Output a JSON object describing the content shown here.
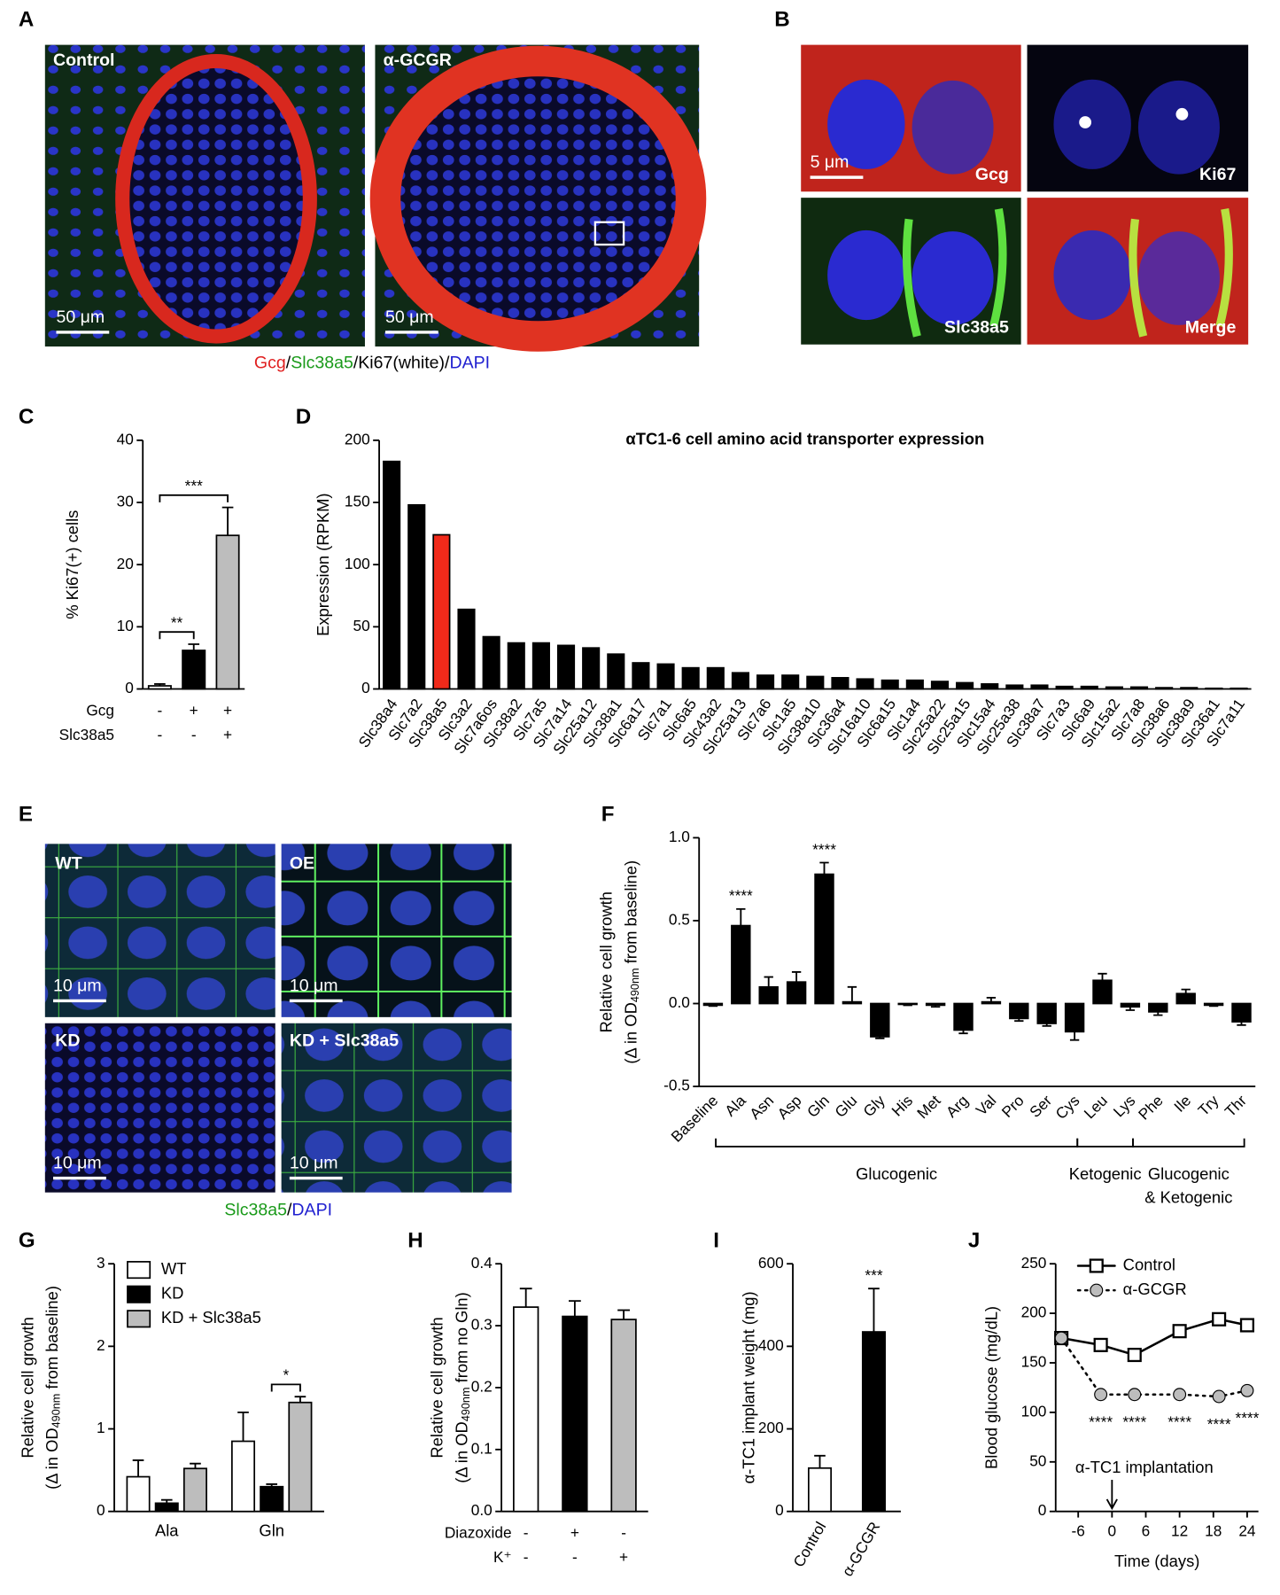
{
  "panel_letters": [
    "A",
    "B",
    "C",
    "D",
    "E",
    "F",
    "G",
    "H",
    "I",
    "J"
  ],
  "images": {
    "A": {
      "labels": [
        "Control",
        "α-GCGR"
      ],
      "scale_bar": "50 μm",
      "caption": [
        {
          "text": "Gcg",
          "color": "#e02020"
        },
        {
          "text": "/",
          "color": "#000000"
        },
        {
          "text": "Slc38a5",
          "color": "#1a9a1a"
        },
        {
          "text": "/Ki67(white)/",
          "color": "#000000"
        },
        {
          "text": "DAPI",
          "color": "#2020d0"
        }
      ]
    },
    "B": {
      "labels": [
        "Gcg",
        "Ki67",
        "Slc38a5",
        "Merge"
      ],
      "scale_bar": "5 μm"
    },
    "E": {
      "labels": [
        "WT",
        "OE",
        "KD",
        "KD + Slc38a5"
      ],
      "scale_bar": "10 μm",
      "caption": [
        {
          "text": "Slc38a5",
          "color": "#1a9a1a"
        },
        {
          "text": "/",
          "color": "#000000"
        },
        {
          "text": "DAPI",
          "color": "#2020d0"
        }
      ]
    }
  },
  "chart_data": [
    {
      "type": "bar",
      "ylabel": "% Ki67(+) cells",
      "values": [
        0.5,
        6.2,
        24.7
      ],
      "errors": [
        0.3,
        1.0,
        4.5
      ],
      "colors": [
        "#ffffff",
        "#000000",
        "#bdbdbd"
      ],
      "ylim": [
        0,
        40
      ],
      "yticks": [
        0,
        10,
        20,
        30,
        40
      ],
      "rows": [
        {
          "label": "Gcg",
          "signs": [
            "-",
            "+",
            "+"
          ]
        },
        {
          "label": "Slc38a5",
          "signs": [
            "-",
            "-",
            "+"
          ]
        }
      ],
      "brackets": [
        {
          "from": 0,
          "to": 1,
          "label": "**"
        },
        {
          "from": 0,
          "to": 2,
          "label": "***"
        }
      ]
    },
    {
      "type": "bar",
      "title": "αTC1-6 cell amino acid transporter expression",
      "ylabel": "Expression (RPKM)",
      "categories": [
        "Slc38a4",
        "Slc7a2",
        "Slc38a5",
        "Slc3a2",
        "Slc7a6os",
        "Slc38a2",
        "Slc7a5",
        "Slc7a14",
        "Slc25a12",
        "Slc38a1",
        "Slc6a17",
        "Slc7a1",
        "Slc6a5",
        "Slc43a2",
        "Slc25a13",
        "Slc7a6",
        "Slc1a5",
        "Slc38a10",
        "Slc36a4",
        "Slc16a10",
        "Slc6a15",
        "Slc1a4",
        "Slc25a22",
        "Slc25a15",
        "Slc15a4",
        "Slc25a38",
        "Slc38a7",
        "Slc7a3",
        "Slc6a9",
        "Slc15a2",
        "Slc7a8",
        "Slc38a6",
        "Slc38a9",
        "Slc36a1",
        "Slc7a11"
      ],
      "values": [
        183,
        148,
        124,
        64,
        42,
        37,
        37,
        35,
        33,
        28,
        21,
        20,
        17,
        17,
        13,
        11,
        11,
        10,
        9,
        8,
        7,
        7,
        6,
        5,
        4,
        3,
        3,
        2,
        2,
        1.5,
        1.5,
        1,
        1,
        0.5,
        0.5
      ],
      "colors": [
        "#000000",
        "#000000",
        "#f02a1a",
        "#000000",
        "#000000",
        "#000000",
        "#000000",
        "#000000",
        "#000000",
        "#000000",
        "#000000",
        "#000000",
        "#000000",
        "#000000",
        "#000000",
        "#000000",
        "#000000",
        "#000000",
        "#000000",
        "#000000",
        "#000000",
        "#000000",
        "#000000",
        "#000000",
        "#000000",
        "#000000",
        "#000000",
        "#000000",
        "#000000",
        "#000000",
        "#000000",
        "#000000",
        "#000000",
        "#000000",
        "#000000"
      ],
      "ylim": [
        0,
        200
      ],
      "yticks": [
        0,
        50,
        100,
        150,
        200
      ]
    },
    {
      "type": "bar",
      "ylabel": "Relative cell growth",
      "ylabel_sub": {
        "pre": "(Δ in OD",
        "sub": "490nm",
        "post": " from baseline)"
      },
      "categories": [
        "Baseline",
        "Ala",
        "Asn",
        "Asp",
        "Gln",
        "Glu",
        "Gly",
        "His",
        "Met",
        "Arg",
        "Val",
        "Pro",
        "Ser",
        "Cys",
        "Leu",
        "Lys",
        "Phe",
        "Ile",
        "Try",
        "Thr"
      ],
      "values": [
        -0.01,
        0.47,
        0.1,
        0.13,
        0.78,
        0.01,
        -0.2,
        -0.005,
        -0.01,
        -0.16,
        0.01,
        -0.09,
        -0.12,
        -0.17,
        0.14,
        -0.02,
        -0.05,
        0.06,
        -0.01,
        -0.11
      ],
      "errors": [
        0.005,
        0.1,
        0.06,
        0.06,
        0.07,
        0.09,
        0.01,
        0.005,
        0.01,
        0.02,
        0.025,
        0.015,
        0.015,
        0.05,
        0.04,
        0.02,
        0.02,
        0.025,
        0.005,
        0.02
      ],
      "colors": [
        "#000000",
        "#000000",
        "#000000",
        "#000000",
        "#000000",
        "#000000",
        "#000000",
        "#000000",
        "#000000",
        "#000000",
        "#000000",
        "#000000",
        "#000000",
        "#000000",
        "#000000",
        "#000000",
        "#000000",
        "#000000",
        "#000000",
        "#000000"
      ],
      "ylim": [
        -0.5,
        1.0
      ],
      "yticks": [
        -0.5,
        {
          "value": 0,
          "label": "0.0"
        },
        0.5,
        {
          "value": 1,
          "label": "1.0"
        }
      ],
      "annotations": [
        {
          "index": 1,
          "label": "****"
        },
        {
          "index": 4,
          "label": "****"
        }
      ],
      "groups": [
        {
          "from": 1,
          "to": 13,
          "label": [
            "Glucogenic"
          ]
        },
        {
          "from": 14,
          "to": 15,
          "label": [
            "Ketogenic"
          ]
        },
        {
          "from": 16,
          "to": 19,
          "label": [
            "Glucogenic",
            "& Ketogenic"
          ]
        }
      ]
    },
    {
      "type": "grouped_bar",
      "ylabel": "Relative cell growth",
      "ylabel_sub": {
        "pre": "(Δ in OD",
        "sub": "490nm",
        "post": " from baseline)"
      },
      "categories": [
        "Ala",
        "Gln"
      ],
      "series": [
        {
          "name": "WT",
          "color": "#ffffff",
          "values": [
            0.42,
            0.85
          ],
          "errors": [
            0.2,
            0.35
          ]
        },
        {
          "name": "KD",
          "color": "#000000",
          "values": [
            0.1,
            0.3
          ],
          "errors": [
            0.04,
            0.03
          ]
        },
        {
          "name": "KD + Slc38a5",
          "color": "#bdbdbd",
          "values": [
            0.52,
            1.32
          ],
          "errors": [
            0.06,
            0.07
          ]
        }
      ],
      "ylim": [
        0,
        3
      ],
      "yticks": [
        0,
        1,
        2,
        3
      ],
      "brackets": [
        {
          "category": 1,
          "from": 1,
          "to": 2,
          "label": "*"
        }
      ]
    },
    {
      "type": "bar",
      "ylabel": "Relative cell growth",
      "ylabel_sub": {
        "pre": "(Δ in OD",
        "sub": "490nm",
        "post": " from no Gln)"
      },
      "values": [
        0.33,
        0.315,
        0.31
      ],
      "errors": [
        0.03,
        0.025,
        0.015
      ],
      "colors": [
        "#ffffff",
        "#000000",
        "#bdbdbd"
      ],
      "ylim": [
        0,
        0.4
      ],
      "yticks": [
        {
          "value": 0,
          "label": "0.0"
        },
        0.1,
        0.2,
        0.3,
        0.4
      ],
      "rows": [
        {
          "label": "Diazoxide",
          "signs": [
            "-",
            "+",
            "-"
          ]
        },
        {
          "label": "K⁺",
          "signs": [
            "-",
            "-",
            "+"
          ]
        }
      ]
    },
    {
      "type": "bar",
      "ylabel": "α-TC1 implant weight (mg)",
      "categories": [
        "Control",
        "α-GCGR"
      ],
      "values": [
        105,
        435
      ],
      "errors": [
        30,
        105
      ],
      "colors": [
        "#ffffff",
        "#000000"
      ],
      "ylim": [
        0,
        600
      ],
      "yticks": [
        0,
        200,
        400,
        600
      ],
      "annotations": [
        {
          "index": 1,
          "label": "***"
        }
      ]
    },
    {
      "type": "line",
      "xlabel": "Time (days)",
      "ylabel": "Blood glucose (mg/dL)",
      "x": [
        -9,
        -2,
        4,
        12,
        19,
        24
      ],
      "series": [
        {
          "name": "Control",
          "color": "#000000",
          "marker": "square",
          "marker_fill": "#ffffff",
          "dash": "solid",
          "values": [
            175,
            168,
            158,
            182,
            194,
            188
          ]
        },
        {
          "name": "α-GCGR",
          "color": "#000000",
          "marker": "circle",
          "marker_fill": "#bdbdbd",
          "dash": "dotted",
          "values": [
            175,
            118,
            118,
            118,
            116,
            122
          ]
        }
      ],
      "xlim": [
        -10,
        26
      ],
      "xticks": [
        -6,
        0,
        6,
        12,
        18,
        24
      ],
      "ylim": [
        0,
        250
      ],
      "yticks": [
        0,
        50,
        100,
        150,
        200,
        250
      ],
      "annotations": [
        {
          "series": 1,
          "index": 1,
          "label": "****"
        },
        {
          "series": 1,
          "index": 2,
          "label": "****"
        },
        {
          "series": 1,
          "index": 3,
          "label": "****"
        },
        {
          "series": 1,
          "index": 4,
          "label": "****"
        },
        {
          "series": 1,
          "index": 5,
          "label": "****"
        }
      ],
      "event": {
        "x": 0,
        "label": "α-TC1 implantation"
      }
    }
  ]
}
